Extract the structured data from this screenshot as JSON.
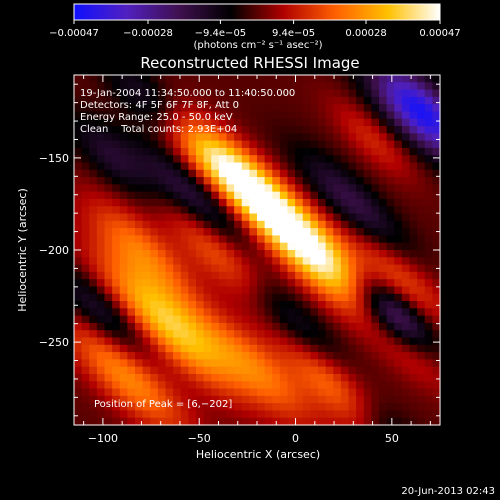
{
  "chart_data": {
    "type": "heatmap",
    "title": "Reconstructed RHESSI Image",
    "xlabel": "Heliocentric X (arcsec)",
    "ylabel": "Heliocentric Y (arcsec)",
    "xlim": [
      -115,
      75
    ],
    "ylim": [
      -295,
      -105
    ],
    "x_ticks": [
      -100,
      -50,
      0,
      50
    ],
    "x_tick_labels": [
      "−100",
      "−50",
      "0",
      "50"
    ],
    "y_ticks": [
      -150,
      -200,
      -250
    ],
    "y_tick_labels": [
      "−150",
      "−200",
      "−250"
    ],
    "colorbar": {
      "range": [
        -0.00047,
        0.00047
      ],
      "ticks": [
        -0.00047,
        -0.00028,
        -9.4e-05,
        9.4e-05,
        0.00028,
        0.00047
      ],
      "tick_labels": [
        "−0.00047",
        "−0.00028",
        "−9.4e−05",
        "9.4e−05",
        "0.00028",
        "0.00047"
      ],
      "unit_label": "(photons cm⁻² s⁻¹ asec⁻²)",
      "colors": [
        "#1010ff",
        "#5020c0",
        "#401050",
        "#000000",
        "#b00000",
        "#ff6000",
        "#ffc000",
        "#ffffff"
      ]
    },
    "annotations": [
      "19-Jan-2004 11:34:50.000 to 11:40:50.000",
      "Detectors: 4F 5F 6F 7F 8F, Att 0",
      "Energy Range: 25.0 - 50.0 keV",
      "Clean    Total counts: 2.93E+04"
    ],
    "peak_label": "Position of Peak = [6,−202]",
    "peak_position": [
      6,
      -202
    ],
    "blobs": [
      {
        "x": 8,
        "y": -200,
        "amp": 1.0,
        "sa": 34,
        "sb": 10
      },
      {
        "x": -28,
        "y": -162,
        "amp": 0.85,
        "sa": 28,
        "sb": 9
      },
      {
        "x": -66,
        "y": -240,
        "amp": 0.75,
        "sa": 34,
        "sb": 10
      },
      {
        "x": -35,
        "y": -205,
        "amp": 0.55,
        "sa": 30,
        "sb": 9
      },
      {
        "x": 22,
        "y": -275,
        "amp": 0.55,
        "sa": 28,
        "sb": 9
      },
      {
        "x": -88,
        "y": -268,
        "amp": 0.55,
        "sa": 30,
        "sb": 10
      },
      {
        "x": -80,
        "y": -200,
        "amp": 0.45,
        "sa": 26,
        "sb": 9
      },
      {
        "x": 55,
        "y": -215,
        "amp": 0.35,
        "sa": 25,
        "sb": 8
      },
      {
        "x": -20,
        "y": -265,
        "amp": 0.45,
        "sa": 28,
        "sb": 9
      },
      {
        "x": 40,
        "y": -140,
        "amp": 0.25,
        "sa": 20,
        "sb": 7
      },
      {
        "x": -55,
        "y": -140,
        "amp": 0.25,
        "sa": 22,
        "sb": 8
      },
      {
        "x": 60,
        "y": -255,
        "amp": 0.25,
        "sa": 20,
        "sb": 8
      }
    ],
    "negatives": [
      {
        "x": 65,
        "y": -125,
        "amp": -0.95,
        "sa": 24,
        "sb": 10
      },
      {
        "x": 50,
        "y": -235,
        "amp": -0.75,
        "sa": 20,
        "sb": 8
      },
      {
        "x": -50,
        "y": -175,
        "amp": -0.45,
        "sa": 30,
        "sb": 8
      },
      {
        "x": -5,
        "y": -235,
        "amp": -0.45,
        "sa": 30,
        "sb": 8
      },
      {
        "x": 30,
        "y": -175,
        "amp": -0.4,
        "sa": 28,
        "sb": 8
      },
      {
        "x": -100,
        "y": -235,
        "amp": -0.4,
        "sa": 24,
        "sb": 8
      },
      {
        "x": -75,
        "y": -120,
        "amp": -0.35,
        "sa": 22,
        "sb": 8
      },
      {
        "x": 45,
        "y": -295,
        "amp": -0.35,
        "sa": 22,
        "sb": 8
      },
      {
        "x": -95,
        "y": -150,
        "amp": -0.3,
        "sa": 22,
        "sb": 8
      }
    ]
  },
  "footer": {
    "timestamp": "20-Jun-2013 02:43"
  }
}
